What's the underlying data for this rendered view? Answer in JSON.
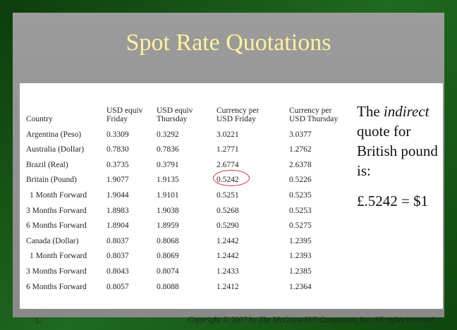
{
  "slide": {
    "title": "Spot Rate Quotations",
    "page": "5-",
    "copyright": "Copyright © 2007 by The McGraw-Hill Companies, Inc.  All rights reserved.",
    "side_text": {
      "before": "The ",
      "italic": "indirect",
      "after": " quote for British pound is:"
    },
    "equation": "£.5242 = $1",
    "colors": {
      "title": "#fff39a",
      "circle": "#d3342f",
      "frame": "#1f6a1f",
      "background": "#9c9c9c"
    }
  },
  "table": {
    "headers": [
      {
        "line1": "Country",
        "line2": ""
      },
      {
        "line1": "USD equiv",
        "line2": "Friday"
      },
      {
        "line1": "USD equiv",
        "line2": "Thursday"
      },
      {
        "line1": "Currency per",
        "line2": "USD Friday"
      },
      {
        "line1": "Currency per",
        "line2": "USD Thursday"
      }
    ],
    "rows": [
      [
        "Argentina (Peso)",
        "0.3309",
        "0.3292",
        "3.0221",
        "3.0377"
      ],
      [
        "Australia (Dollar)",
        "0.7830",
        "0.7836",
        "1.2771",
        "1.2762"
      ],
      [
        "Brazil (Real)",
        "0.3735",
        "0.3791",
        "2.6774",
        "2.6378"
      ],
      [
        "Britain (Pound)",
        "1.9077",
        "1.9135",
        "0.5242",
        "0.5226"
      ],
      [
        "1 Month Forward",
        "1.9044",
        "1.9101",
        "0.5251",
        "0.5235"
      ],
      [
        "3 Months Forward",
        "1.8983",
        "1.9038",
        "0.5268",
        "0.5253"
      ],
      [
        "6 Months Forward",
        "1.8904",
        "1.8959",
        "0.5290",
        "0.5275"
      ],
      [
        "Canada (Dollar)",
        "0.8037",
        "0.8068",
        "1.2442",
        "1.2395"
      ],
      [
        "1 Month Forward",
        "0.8037",
        "0.8069",
        "1.2442",
        "1.2393"
      ],
      [
        "3 Months Forward",
        "0.8043",
        "0.8074",
        "1.2433",
        "1.2385"
      ],
      [
        "6 Months Forward",
        "0.8057",
        "0.8088",
        "1.2412",
        "1.2364"
      ]
    ]
  }
}
